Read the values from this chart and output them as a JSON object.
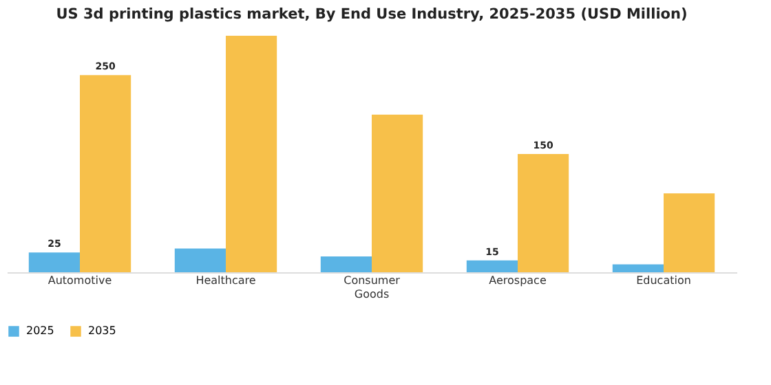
{
  "chart_data": {
    "type": "bar",
    "title": "US 3d printing plastics market, By End Use Industry, 2025-2035 (USD Million)",
    "categories": [
      "Automotive",
      "Healthcare",
      "Consumer Goods",
      "Aerospace",
      "Education"
    ],
    "series": [
      {
        "name": "2025",
        "color": "#5ab4e5",
        "values": [
          25,
          30,
          20,
          15,
          10
        ],
        "value_labels": [
          "25",
          null,
          null,
          "15",
          null
        ]
      },
      {
        "name": "2035",
        "color": "#f7c04a",
        "values": [
          250,
          300,
          200,
          150,
          100
        ],
        "value_labels": [
          "250",
          null,
          null,
          "150",
          null
        ]
      }
    ],
    "ylim": [
      0,
      300
    ],
    "legend": "bottom",
    "grid": false
  }
}
